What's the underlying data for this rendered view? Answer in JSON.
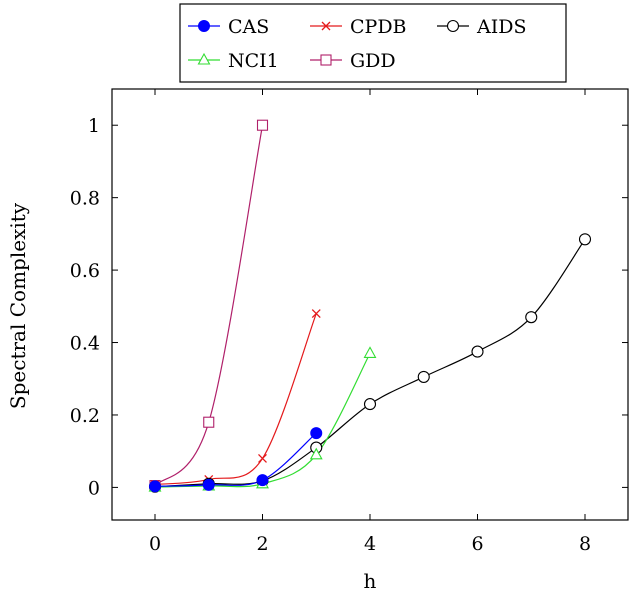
{
  "chart_data": {
    "type": "line",
    "title": "",
    "xlabel": "h",
    "ylabel": "Spectral Complexity",
    "xlim": [
      -0.8,
      8.8
    ],
    "ylim": [
      -0.09,
      1.1
    ],
    "x_ticks": [
      0,
      2,
      4,
      6,
      8
    ],
    "y_ticks": [
      0,
      0.2,
      0.4,
      0.6,
      0.8,
      1
    ],
    "grid": false,
    "smooth": true,
    "legend_position": "top-center, above plot",
    "legend_columns": 3,
    "series": [
      {
        "name": "CAS",
        "color": "#0000ff",
        "marker": "filled-circle",
        "x": [
          0,
          1,
          2,
          3
        ],
        "y": [
          0.003,
          0.007,
          0.02,
          0.15
        ]
      },
      {
        "name": "CPDB",
        "color": "#e41a1c",
        "marker": "x",
        "x": [
          0,
          1,
          2,
          3
        ],
        "y": [
          0.008,
          0.022,
          0.08,
          0.48
        ]
      },
      {
        "name": "AIDS",
        "color": "#000000",
        "marker": "open-circle",
        "x": [
          0,
          1,
          2,
          3,
          4,
          5,
          6,
          7,
          8
        ],
        "y": [
          0.002,
          0.01,
          0.018,
          0.11,
          0.23,
          0.305,
          0.375,
          0.47,
          0.685
        ]
      },
      {
        "name": "NCI1",
        "color": "#33dd33",
        "marker": "open-triangle",
        "x": [
          0,
          1,
          2,
          3,
          4
        ],
        "y": [
          0.001,
          0.004,
          0.01,
          0.09,
          0.37
        ]
      },
      {
        "name": "GDD",
        "color": "#b0206a",
        "marker": "open-square",
        "x": [
          0,
          1,
          2
        ],
        "y": [
          0.005,
          0.18,
          1.0
        ]
      }
    ]
  }
}
